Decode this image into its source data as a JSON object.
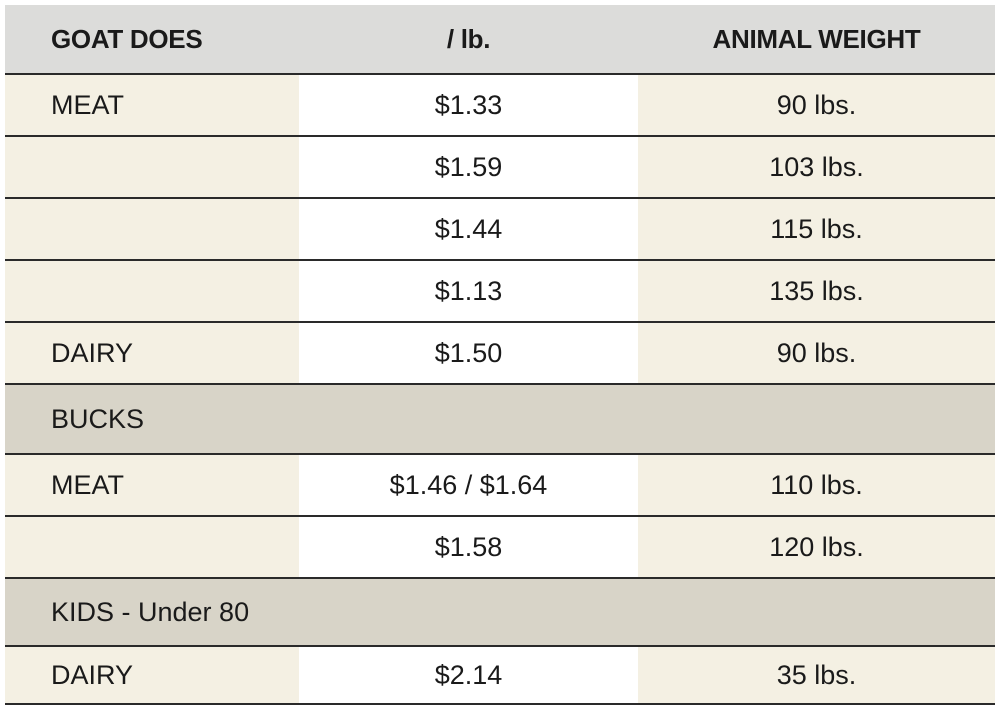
{
  "header": {
    "col1": "GOAT DOES",
    "col2": "/ lb.",
    "col3": "ANIMAL WEIGHT"
  },
  "rows": [
    {
      "label": "MEAT",
      "price": "$1.33",
      "weight": "90 lbs."
    },
    {
      "label": "",
      "price": "$1.59",
      "weight": "103 lbs."
    },
    {
      "label": "",
      "price": "$1.44",
      "weight": "115 lbs."
    },
    {
      "label": "",
      "price": "$1.13",
      "weight": "135 lbs."
    },
    {
      "label": "DAIRY",
      "price": "$1.50",
      "weight": "90 lbs."
    },
    {
      "section": "BUCKS"
    },
    {
      "label": "MEAT",
      "price": "$1.46 / $1.64",
      "weight": "110 lbs."
    },
    {
      "label": "",
      "price": "$1.58",
      "weight": "120 lbs."
    },
    {
      "section": "KIDS - Under 80"
    },
    {
      "label": "DAIRY",
      "price": "$2.14",
      "weight": "35 lbs."
    }
  ],
  "colors": {
    "header_bg": "#dcdcda",
    "cream": "#f4f0e3",
    "section_bg": "#d8d4c8",
    "rule": "#2a2a2a"
  }
}
